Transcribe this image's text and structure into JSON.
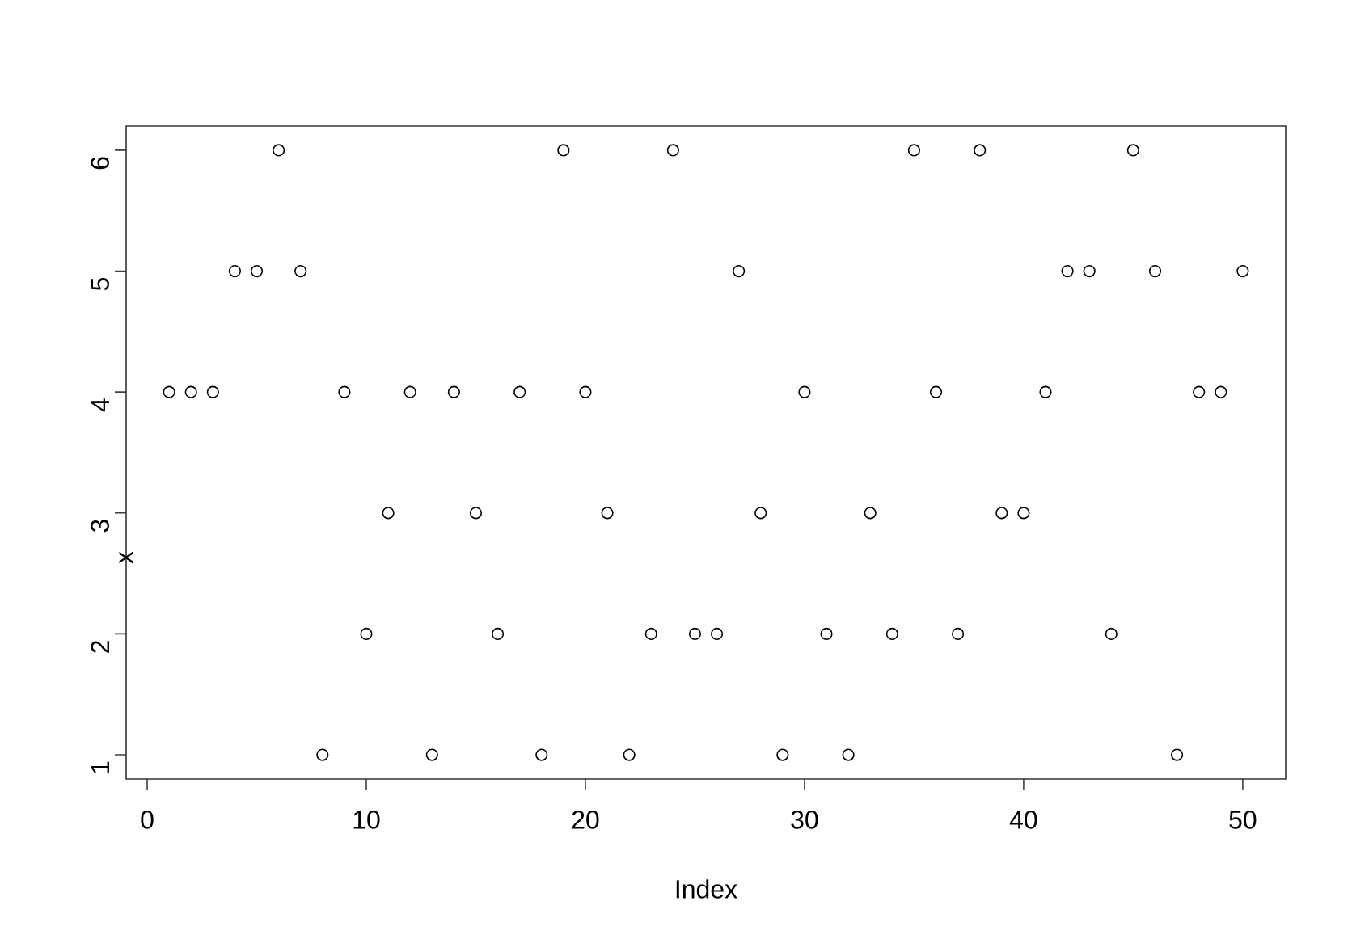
{
  "chart_data": {
    "type": "scatter",
    "xlabel": "Index",
    "ylabel": "x",
    "x": [
      1,
      2,
      3,
      4,
      5,
      6,
      7,
      8,
      9,
      10,
      11,
      12,
      13,
      14,
      15,
      16,
      17,
      18,
      19,
      20,
      21,
      22,
      23,
      24,
      25,
      26,
      27,
      28,
      29,
      30,
      31,
      32,
      33,
      34,
      35,
      36,
      37,
      38,
      39,
      40,
      41,
      42,
      43,
      44,
      45,
      46,
      47,
      48,
      49,
      50
    ],
    "values": [
      4,
      4,
      4,
      5,
      5,
      6,
      5,
      1,
      4,
      2,
      3,
      4,
      1,
      4,
      3,
      2,
      4,
      1,
      6,
      4,
      3,
      1,
      2,
      6,
      2,
      2,
      5,
      3,
      1,
      4,
      2,
      1,
      3,
      2,
      6,
      4,
      2,
      6,
      3,
      3,
      4,
      5,
      5,
      2,
      6,
      5,
      1,
      4,
      4,
      5
    ],
    "color": "#000000",
    "marker": "circle",
    "xlim": [
      -0.96,
      51.96
    ],
    "ylim": [
      0.8,
      6.2
    ],
    "xticks": [
      0,
      10,
      20,
      30,
      40,
      50
    ],
    "yticks": [
      1,
      2,
      3,
      4,
      5,
      6
    ]
  }
}
